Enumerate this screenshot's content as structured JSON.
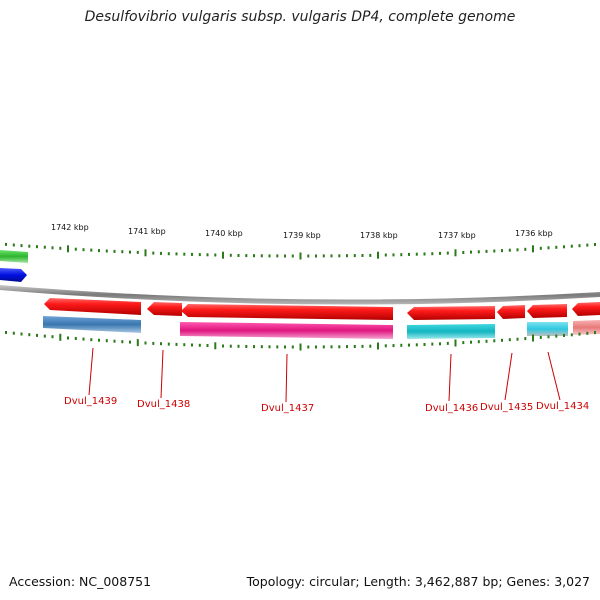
{
  "header": {
    "title": "Desulfovibrio vulgaris subsp. vulgaris DP4, complete genome"
  },
  "footer": {
    "accession": "Accession: NC_008751",
    "summary": "Topology: circular; Length: 3,462,887 bp; Genes: 3,027"
  },
  "axis": {
    "ticks": [
      "1742 kbp",
      "1741 kbp",
      "1740 kbp",
      "1739 kbp",
      "1738 kbp",
      "1737 kbp",
      "1736 kbp"
    ]
  },
  "genes": [
    {
      "label": "Dvul_1439",
      "color": "#e8000b"
    },
    {
      "label": "Dvul_1438",
      "color": "#e8000b"
    },
    {
      "label": "Dvul_1437",
      "color": "#e8000b"
    },
    {
      "label": "Dvul_1436",
      "color": "#e8000b"
    },
    {
      "label": "Dvul_1435",
      "color": "#e8000b"
    },
    {
      "label": "Dvul_1434",
      "color": "#e8000b"
    }
  ],
  "colors": {
    "cds": "#e8000b",
    "blue_feature": "#3a77b0",
    "magenta_feature": "#e0157f",
    "cyan_feature": "#12b5c0",
    "light_cyan_feature": "#2ec8e0",
    "pink_feature": "#e87a7a",
    "green_feature": "#2db52d",
    "dark_blue_feature": "#0010e0",
    "backbone": "#8a8a8a",
    "tick": "#2a7a1a",
    "label": "#cc0000"
  }
}
